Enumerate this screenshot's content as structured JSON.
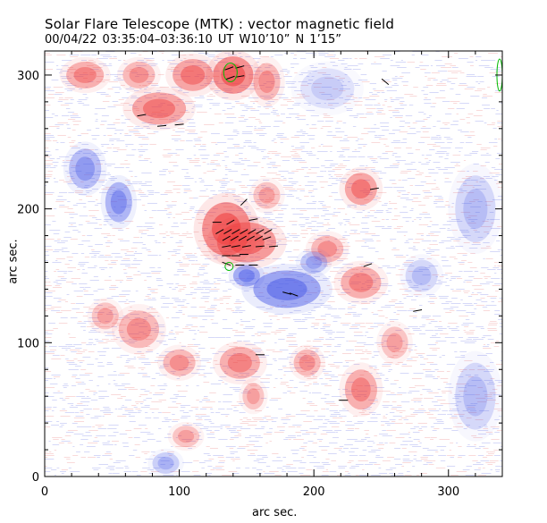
{
  "title": "Solar Flare Telescope (MTK) : vector magnetic field",
  "subtitle": "00/04/22   03:35:04–03:36:10 UT      W10’10”   N 1’15”",
  "chart_data": {
    "type": "heatmap",
    "title": "Solar Flare Telescope (MTK) : vector magnetic field",
    "subtitle": "00/04/22   03:35:04–03:36:10 UT      W10’10”   N 1’15”",
    "xlabel": "arc sec.",
    "ylabel": "arc sec.",
    "xlim": [
      0,
      340
    ],
    "ylim": [
      0,
      318
    ],
    "xticks": [
      "0",
      "100",
      "200",
      "300"
    ],
    "yticks": [
      "0",
      "100",
      "200",
      "300"
    ],
    "colors": {
      "positive": "#ee3b3b",
      "negative": "#4f5fe8",
      "vector": "#000000",
      "contour": "#00bb00"
    },
    "regions": [
      {
        "polarity": "positive",
        "x": 135,
        "y": 185,
        "rx": 18,
        "ry": 20,
        "strength": 1.0
      },
      {
        "polarity": "positive",
        "x": 150,
        "y": 175,
        "rx": 22,
        "ry": 15,
        "strength": 0.9
      },
      {
        "polarity": "positive",
        "x": 140,
        "y": 300,
        "rx": 15,
        "ry": 14,
        "strength": 1.0
      },
      {
        "polarity": "positive",
        "x": 110,
        "y": 300,
        "rx": 15,
        "ry": 12,
        "strength": 0.8
      },
      {
        "polarity": "positive",
        "x": 85,
        "y": 275,
        "rx": 20,
        "ry": 12,
        "strength": 0.8
      },
      {
        "polarity": "positive",
        "x": 70,
        "y": 300,
        "rx": 12,
        "ry": 10,
        "strength": 0.6
      },
      {
        "polarity": "positive",
        "x": 30,
        "y": 300,
        "rx": 14,
        "ry": 10,
        "strength": 0.7
      },
      {
        "polarity": "positive",
        "x": 165,
        "y": 295,
        "rx": 10,
        "ry": 14,
        "strength": 0.6
      },
      {
        "polarity": "positive",
        "x": 235,
        "y": 215,
        "rx": 12,
        "ry": 12,
        "strength": 0.8
      },
      {
        "polarity": "positive",
        "x": 235,
        "y": 145,
        "rx": 15,
        "ry": 12,
        "strength": 0.7
      },
      {
        "polarity": "positive",
        "x": 210,
        "y": 170,
        "rx": 12,
        "ry": 10,
        "strength": 0.6
      },
      {
        "polarity": "positive",
        "x": 70,
        "y": 110,
        "rx": 15,
        "ry": 14,
        "strength": 0.6
      },
      {
        "polarity": "positive",
        "x": 100,
        "y": 85,
        "rx": 12,
        "ry": 10,
        "strength": 0.6
      },
      {
        "polarity": "positive",
        "x": 145,
        "y": 85,
        "rx": 15,
        "ry": 12,
        "strength": 0.7
      },
      {
        "polarity": "positive",
        "x": 195,
        "y": 85,
        "rx": 10,
        "ry": 10,
        "strength": 0.6
      },
      {
        "polarity": "positive",
        "x": 235,
        "y": 65,
        "rx": 12,
        "ry": 15,
        "strength": 0.7
      },
      {
        "polarity": "positive",
        "x": 260,
        "y": 100,
        "rx": 10,
        "ry": 12,
        "strength": 0.5
      },
      {
        "polarity": "positive",
        "x": 45,
        "y": 120,
        "rx": 10,
        "ry": 10,
        "strength": 0.5
      },
      {
        "polarity": "positive",
        "x": 105,
        "y": 30,
        "rx": 10,
        "ry": 8,
        "strength": 0.5
      },
      {
        "polarity": "positive",
        "x": 155,
        "y": 60,
        "rx": 8,
        "ry": 10,
        "strength": 0.5
      },
      {
        "polarity": "positive",
        "x": 165,
        "y": 210,
        "rx": 10,
        "ry": 10,
        "strength": 0.5
      },
      {
        "polarity": "negative",
        "x": 180,
        "y": 140,
        "rx": 25,
        "ry": 14,
        "strength": 1.0
      },
      {
        "polarity": "negative",
        "x": 150,
        "y": 150,
        "rx": 10,
        "ry": 8,
        "strength": 0.9
      },
      {
        "polarity": "negative",
        "x": 55,
        "y": 205,
        "rx": 10,
        "ry": 15,
        "strength": 0.8
      },
      {
        "polarity": "negative",
        "x": 30,
        "y": 230,
        "rx": 12,
        "ry": 15,
        "strength": 0.7
      },
      {
        "polarity": "negative",
        "x": 200,
        "y": 160,
        "rx": 10,
        "ry": 8,
        "strength": 0.6
      },
      {
        "polarity": "negative",
        "x": 320,
        "y": 200,
        "rx": 15,
        "ry": 25,
        "strength": 0.4
      },
      {
        "polarity": "negative",
        "x": 320,
        "y": 60,
        "rx": 15,
        "ry": 25,
        "strength": 0.4
      },
      {
        "polarity": "negative",
        "x": 90,
        "y": 10,
        "rx": 10,
        "ry": 8,
        "strength": 0.5
      },
      {
        "polarity": "negative",
        "x": 210,
        "y": 290,
        "rx": 20,
        "ry": 15,
        "strength": 0.3
      },
      {
        "polarity": "negative",
        "x": 280,
        "y": 150,
        "rx": 12,
        "ry": 12,
        "strength": 0.4
      }
    ],
    "vectors": [
      {
        "x": 137,
        "y": 305,
        "angle": 20
      },
      {
        "x": 145,
        "y": 306,
        "angle": 15
      },
      {
        "x": 138,
        "y": 298,
        "angle": 20
      },
      {
        "x": 145,
        "y": 299,
        "angle": 10
      },
      {
        "x": 72,
        "y": 270,
        "angle": 10
      },
      {
        "x": 87,
        "y": 262,
        "angle": 5
      },
      {
        "x": 100,
        "y": 263,
        "angle": 5
      },
      {
        "x": 253,
        "y": 295,
        "angle": -40
      },
      {
        "x": 245,
        "y": 215,
        "angle": 10
      },
      {
        "x": 148,
        "y": 205,
        "angle": 45
      },
      {
        "x": 128,
        "y": 190,
        "angle": 0
      },
      {
        "x": 138,
        "y": 190,
        "angle": 30
      },
      {
        "x": 155,
        "y": 192,
        "angle": 10
      },
      {
        "x": 130,
        "y": 183,
        "angle": 30
      },
      {
        "x": 136,
        "y": 183,
        "angle": 30
      },
      {
        "x": 142,
        "y": 183,
        "angle": 30
      },
      {
        "x": 148,
        "y": 183,
        "angle": 30
      },
      {
        "x": 154,
        "y": 183,
        "angle": 30
      },
      {
        "x": 160,
        "y": 183,
        "angle": 30
      },
      {
        "x": 166,
        "y": 183,
        "angle": 30
      },
      {
        "x": 135,
        "y": 178,
        "angle": 30
      },
      {
        "x": 141,
        "y": 178,
        "angle": 30
      },
      {
        "x": 147,
        "y": 178,
        "angle": 30
      },
      {
        "x": 153,
        "y": 178,
        "angle": 30
      },
      {
        "x": 159,
        "y": 178,
        "angle": 30
      },
      {
        "x": 165,
        "y": 178,
        "angle": 20
      },
      {
        "x": 135,
        "y": 172,
        "angle": 10
      },
      {
        "x": 142,
        "y": 172,
        "angle": 10
      },
      {
        "x": 150,
        "y": 172,
        "angle": 10
      },
      {
        "x": 160,
        "y": 172,
        "angle": 5
      },
      {
        "x": 170,
        "y": 172,
        "angle": 5
      },
      {
        "x": 135,
        "y": 165,
        "angle": 0
      },
      {
        "x": 142,
        "y": 165,
        "angle": 0
      },
      {
        "x": 148,
        "y": 166,
        "angle": 0
      },
      {
        "x": 135,
        "y": 159,
        "angle": -20
      },
      {
        "x": 145,
        "y": 158,
        "angle": 0
      },
      {
        "x": 155,
        "y": 158,
        "angle": 0
      },
      {
        "x": 180,
        "y": 137,
        "angle": -15
      },
      {
        "x": 185,
        "y": 136,
        "angle": -20
      },
      {
        "x": 240,
        "y": 158,
        "angle": 20
      },
      {
        "x": 277,
        "y": 124,
        "angle": 10
      },
      {
        "x": 160,
        "y": 91,
        "angle": 0
      },
      {
        "x": 222,
        "y": 57,
        "angle": 0
      }
    ],
    "contours": [
      {
        "x": 138,
        "y": 302,
        "rx": 5,
        "ry": 7
      },
      {
        "x": 137,
        "y": 157,
        "rx": 3,
        "ry": 3
      },
      {
        "x": 338,
        "y": 300,
        "rx": 2,
        "ry": 12
      }
    ]
  }
}
